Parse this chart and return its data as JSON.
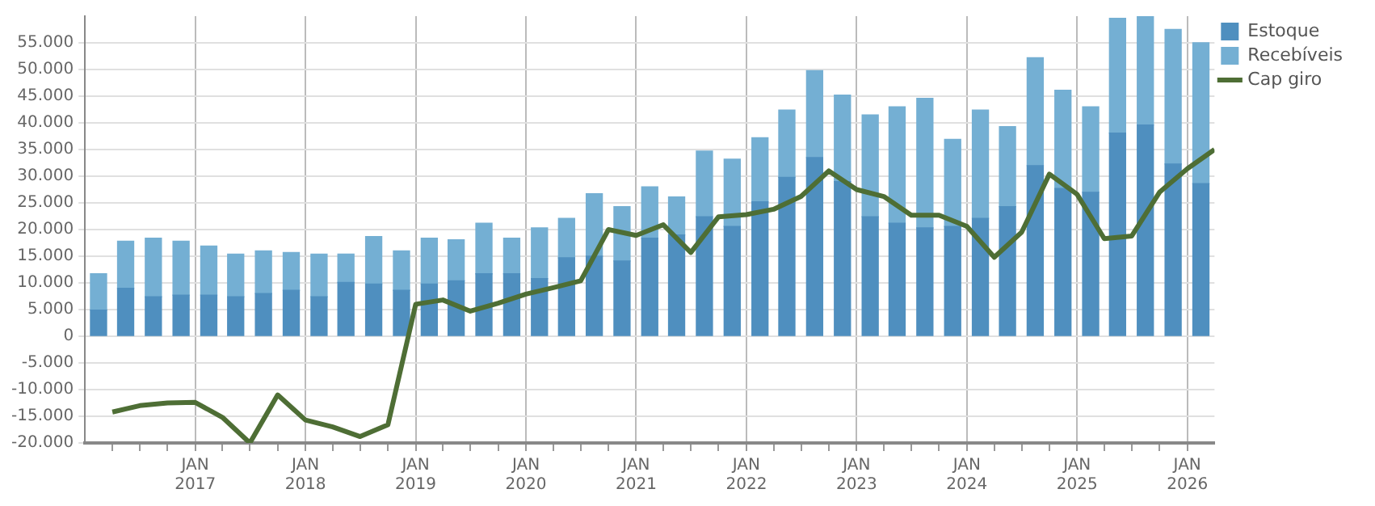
{
  "chart_data": {
    "type": "bar",
    "stacked": true,
    "x": [
      "2016-02-15",
      "2016-05-15",
      "2016-08-15",
      "2016-11-15",
      "2017-02-15",
      "2017-05-15",
      "2017-08-15",
      "2017-11-15",
      "2018-02-15",
      "2018-05-15",
      "2018-08-15",
      "2018-11-15",
      "2019-02-15",
      "2019-05-15",
      "2019-08-15",
      "2019-11-15",
      "2020-02-15",
      "2020-05-15",
      "2020-08-15",
      "2020-11-15",
      "2021-02-15",
      "2021-05-15",
      "2021-08-15",
      "2021-11-15",
      "2022-02-15",
      "2022-05-15",
      "2022-08-15",
      "2022-11-15",
      "2023-02-15",
      "2023-05-15",
      "2023-08-15",
      "2023-11-15",
      "2024-02-15",
      "2024-05-15",
      "2024-08-15",
      "2024-11-15",
      "2025-02-15",
      "2025-05-15",
      "2025-08-15",
      "2025-11-15",
      "2026-02-15"
    ],
    "series": [
      {
        "name": "Estoque",
        "color": "#4f8fbf",
        "values": [
          4900,
          9000,
          7400,
          7700,
          7700,
          7400,
          8000,
          8600,
          7400,
          10100,
          9800,
          8600,
          9800,
          10400,
          11700,
          11700,
          10800,
          14700,
          15000,
          14100,
          18400,
          19000,
          22400,
          20600,
          25200,
          29800,
          33500,
          29000,
          22400,
          21200,
          20300,
          20600,
          22100,
          24300,
          32000,
          27700,
          27000,
          38100,
          39600,
          32300,
          28600
        ]
      },
      {
        "name": "Recebíveis",
        "color": "#74afd3",
        "values": [
          6800,
          8800,
          11000,
          10100,
          9200,
          8000,
          8000,
          7100,
          8000,
          5300,
          8900,
          7400,
          8600,
          7700,
          9500,
          6700,
          9500,
          7400,
          11700,
          10200,
          9600,
          7100,
          12300,
          12600,
          12000,
          12600,
          16300,
          16200,
          19100,
          21800,
          24300,
          16300,
          20300,
          15000,
          20200,
          18400,
          16000,
          21500,
          20300,
          25200,
          26400
        ]
      },
      {
        "name": "Cap giro",
        "type": "line",
        "color": "#4e6e35",
        "line_style": "solid",
        "marker": "none",
        "x": [
          "2016-04",
          "2016-07",
          "2016-10",
          "2017-01",
          "2017-04",
          "2017-07",
          "2017-10",
          "2018-01",
          "2018-04",
          "2018-07",
          "2018-10",
          "2019-01",
          "2019-04",
          "2019-07",
          "2019-10",
          "2020-01",
          "2020-04",
          "2020-07",
          "2020-10",
          "2021-01",
          "2021-04",
          "2021-07",
          "2021-10",
          "2022-01",
          "2022-04",
          "2022-07",
          "2022-10",
          "2023-01",
          "2023-04",
          "2023-07",
          "2023-10",
          "2024-01",
          "2024-04",
          "2024-07",
          "2024-10",
          "2025-01",
          "2025-04",
          "2025-07",
          "2025-10",
          "2026-01",
          "2026-04"
        ],
        "values": [
          -14200,
          -13000,
          -12500,
          -12400,
          -15200,
          -20000,
          -11000,
          -15700,
          -17000,
          -18800,
          -16600,
          6000,
          6800,
          4700,
          6200,
          7900,
          9100,
          10400,
          20000,
          18900,
          20900,
          15700,
          22400,
          22800,
          23800,
          26200,
          31000,
          27500,
          26200,
          22700,
          22700,
          20600,
          14800,
          19500,
          30400,
          26600,
          18300,
          18800,
          27000,
          31400,
          35000
        ]
      }
    ],
    "xlim": [
      "2016-01",
      "2026-04"
    ],
    "xticks": [
      {
        "value": "2016-04",
        "label": null
      },
      {
        "value": "2016-07",
        "label": null
      },
      {
        "value": "2016-10",
        "label": null
      },
      {
        "value": "2017-01",
        "label": "JAN 2017"
      },
      {
        "value": "2017-04",
        "label": null
      },
      {
        "value": "2017-07",
        "label": null
      },
      {
        "value": "2017-10",
        "label": null
      },
      {
        "value": "2018-01",
        "label": "JAN 2018"
      },
      {
        "value": "2018-04",
        "label": null
      },
      {
        "value": "2018-07",
        "label": null
      },
      {
        "value": "2018-10",
        "label": null
      },
      {
        "value": "2019-01",
        "label": "JAN 2019"
      },
      {
        "value": "2019-04",
        "label": null
      },
      {
        "value": "2019-07",
        "label": null
      },
      {
        "value": "2019-10",
        "label": null
      },
      {
        "value": "2020-01",
        "label": "JAN 2020"
      },
      {
        "value": "2020-04",
        "label": null
      },
      {
        "value": "2020-07",
        "label": null
      },
      {
        "value": "2020-10",
        "label": null
      },
      {
        "value": "2021-01",
        "label": "JAN 2021"
      },
      {
        "value": "2021-04",
        "label": null
      },
      {
        "value": "2021-07",
        "label": null
      },
      {
        "value": "2021-10",
        "label": null
      },
      {
        "value": "2022-01",
        "label": "JAN 2022"
      },
      {
        "value": "2022-04",
        "label": null
      },
      {
        "value": "2022-07",
        "label": null
      },
      {
        "value": "2022-10",
        "label": null
      },
      {
        "value": "2023-01",
        "label": "JAN 2023"
      },
      {
        "value": "2023-04",
        "label": null
      },
      {
        "value": "2023-07",
        "label": null
      },
      {
        "value": "2023-10",
        "label": null
      },
      {
        "value": "2024-01",
        "label": "JAN 2024"
      },
      {
        "value": "2024-04",
        "label": null
      },
      {
        "value": "2024-07",
        "label": null
      },
      {
        "value": "2024-10",
        "label": null
      },
      {
        "value": "2025-01",
        "label": "JAN 2025"
      },
      {
        "value": "2025-04",
        "label": null
      },
      {
        "value": "2025-07",
        "label": null
      },
      {
        "value": "2025-10",
        "label": null
      },
      {
        "value": "2026-01",
        "label": "JAN 2026"
      }
    ],
    "ylim": [
      -20000,
      60000
    ],
    "yticks": [
      {
        "value": -20000,
        "label": "-20.000"
      },
      {
        "value": -15000,
        "label": "-15.000"
      },
      {
        "value": -10000,
        "label": "-10.000"
      },
      {
        "value": -5000,
        "label": "-5.000"
      },
      0,
      {
        "value": 5000,
        "label": "5.000"
      },
      {
        "value": 10000,
        "label": "10.000"
      },
      {
        "value": 15000,
        "label": "15.000"
      },
      {
        "value": 20000,
        "label": "20.000"
      },
      {
        "value": 25000,
        "label": "25.000"
      },
      {
        "value": 30000,
        "label": "30.000"
      },
      {
        "value": 35000,
        "label": "35.000"
      },
      {
        "value": 40000,
        "label": "40.000"
      },
      {
        "value": 45000,
        "label": "45.000"
      },
      {
        "value": 50000,
        "label": "50.000"
      },
      {
        "value": 55000,
        "label": "55.000"
      }
    ],
    "grid": true,
    "legend": "top right"
  }
}
